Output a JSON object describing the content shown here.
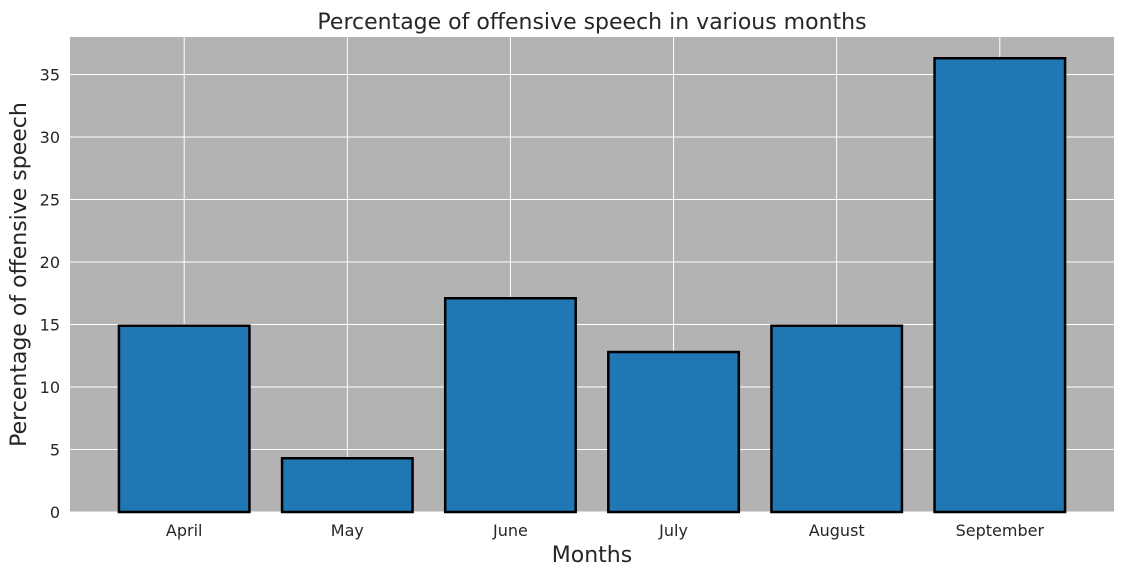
{
  "chart_data": {
    "type": "bar",
    "title": "Percentage of offensive speech in various months",
    "xlabel": "Months",
    "ylabel": "Percentage of offensive speech",
    "categories": [
      "April",
      "May",
      "June",
      "July",
      "August",
      "September"
    ],
    "values": [
      14.9,
      4.3,
      17.1,
      12.8,
      14.9,
      36.3
    ],
    "ylim": [
      0,
      38
    ],
    "yticks": [
      0,
      5,
      10,
      15,
      20,
      25,
      30,
      35
    ],
    "grid": true,
    "legend": "none",
    "colors": {
      "plot_background": "#b3b3b3",
      "grid": "#ffffff",
      "bar_fill": "#1f77b4",
      "bar_edge": "#000000",
      "text": "#262626"
    }
  }
}
